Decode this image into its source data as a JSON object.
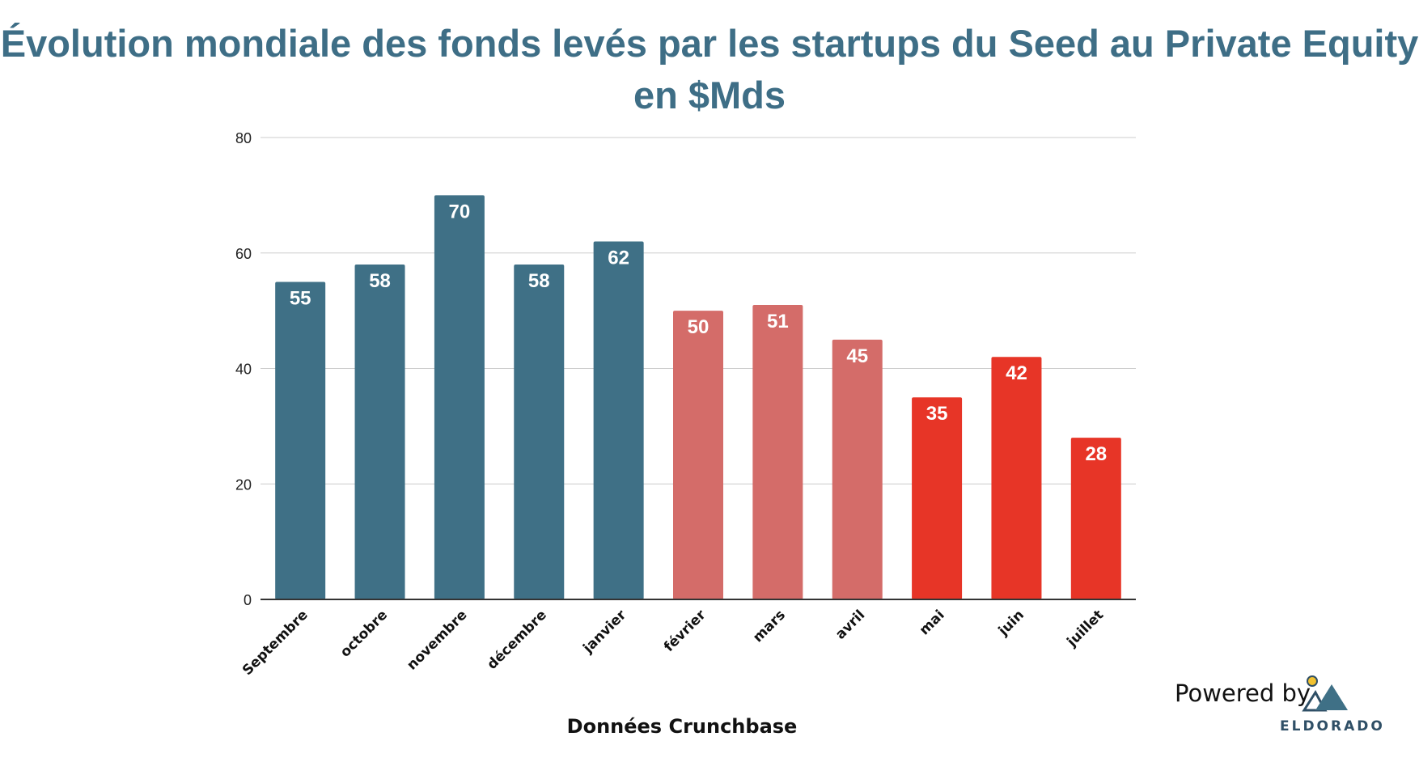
{
  "chart_data": {
    "type": "bar",
    "title_line1": "Évolution mondiale des fonds levés par les startups du Seed au Private Equity",
    "title_line2": "en $Mds",
    "categories": [
      "Septembre",
      "octobre",
      "novembre",
      "décembre",
      "janvier",
      "février",
      "mars",
      "avril",
      "mai",
      "juin",
      "juillet"
    ],
    "values": [
      55,
      58,
      70,
      58,
      62,
      50,
      51,
      45,
      35,
      42,
      28
    ],
    "bar_colors": [
      "#3f7086",
      "#3f7086",
      "#3f7086",
      "#3f7086",
      "#3f7086",
      "#d46c69",
      "#d46c69",
      "#d46c69",
      "#e73527",
      "#e73527",
      "#e73527"
    ],
    "ylim": [
      0,
      80
    ],
    "yticks": [
      0,
      20,
      40,
      60,
      80
    ],
    "grid": true,
    "data_labels": true,
    "xlabel": "Données Crunchbase"
  },
  "branding": {
    "powered_by": "Powered by",
    "name": "ELDORADO",
    "logo_icon": "mountain-sun-icon"
  }
}
